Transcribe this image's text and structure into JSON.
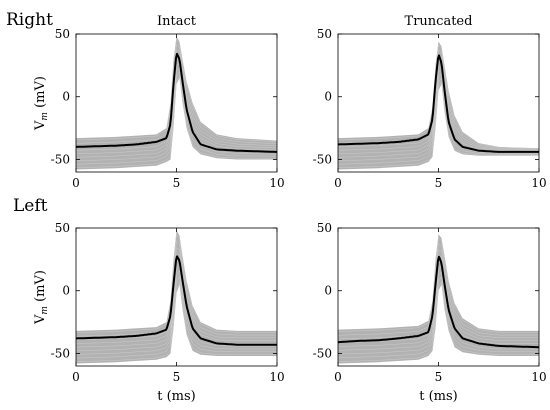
{
  "figure": {
    "row_labels": [
      "Right",
      "Left"
    ],
    "col_titles": [
      "Intact",
      "Truncated"
    ]
  },
  "chart_data": [
    {
      "type": "line",
      "title": "Intact",
      "row": "Right",
      "ylabel": "V",
      "ylabel_sub": "m",
      "ylabel_unit": " (mV)",
      "xlabel": "",
      "xlim": [
        0,
        10
      ],
      "ylim": [
        -60,
        50
      ],
      "xticks": [
        "0",
        "5",
        "10"
      ],
      "yticks": [
        "50",
        "0",
        "-50"
      ],
      "band_color": "#b2b2b2",
      "mean_color": "#000000",
      "grid": false,
      "mean_trace": {
        "x": [
          0,
          1,
          2,
          3,
          4,
          4.5,
          4.7,
          4.85,
          5.0,
          5.15,
          5.3,
          5.5,
          5.8,
          6.2,
          7,
          8,
          10
        ],
        "y": [
          -40,
          -39.5,
          -39,
          -38,
          -36,
          -33,
          -22,
          10,
          35,
          30,
          12,
          -10,
          -28,
          -38,
          -42,
          -43,
          -44
        ]
      },
      "envelope": {
        "x": [
          0,
          2,
          4,
          4.5,
          4.7,
          4.85,
          5.0,
          5.15,
          5.3,
          5.5,
          5.8,
          6.2,
          7,
          8,
          10
        ],
        "upper": [
          -33,
          -32,
          -30,
          -25,
          -5,
          30,
          48,
          44,
          30,
          12,
          -5,
          -20,
          -30,
          -33,
          -35
        ],
        "lower": [
          -58,
          -57,
          -55,
          -52,
          -50,
          -25,
          10,
          15,
          -5,
          -25,
          -40,
          -46,
          -49,
          -50,
          -50
        ]
      }
    },
    {
      "type": "line",
      "title": "Truncated",
      "row": "Right",
      "ylabel": "",
      "xlabel": "",
      "xlim": [
        0,
        10
      ],
      "ylim": [
        -60,
        50
      ],
      "xticks": [
        "0",
        "5",
        "10"
      ],
      "yticks": [
        "50",
        "0",
        "-50"
      ],
      "band_color": "#b2b2b2",
      "mean_color": "#000000",
      "grid": false,
      "mean_trace": {
        "x": [
          0,
          1,
          2,
          3,
          4,
          4.5,
          4.7,
          4.85,
          5.0,
          5.15,
          5.3,
          5.5,
          5.8,
          6.2,
          7,
          8,
          10
        ],
        "y": [
          -38,
          -37.5,
          -37,
          -36,
          -34,
          -30,
          -18,
          12,
          34,
          27,
          5,
          -20,
          -34,
          -40,
          -43,
          -44,
          -44
        ]
      },
      "envelope": {
        "x": [
          0,
          2,
          4,
          4.5,
          4.7,
          4.85,
          5.0,
          5.15,
          5.3,
          5.5,
          5.8,
          6.2,
          7,
          8,
          10
        ],
        "upper": [
          -33,
          -32,
          -30,
          -25,
          -8,
          25,
          44,
          40,
          25,
          5,
          -15,
          -28,
          -37,
          -40,
          -41
        ],
        "lower": [
          -58,
          -57,
          -55,
          -52,
          -48,
          -25,
          5,
          10,
          -12,
          -32,
          -43,
          -46,
          -47,
          -47,
          -47
        ]
      }
    },
    {
      "type": "line",
      "title": "",
      "row": "Left",
      "ylabel": "V",
      "ylabel_sub": "m",
      "ylabel_unit": " (mV)",
      "xlabel": "t (ms)",
      "xlim": [
        0,
        10
      ],
      "ylim": [
        -60,
        50
      ],
      "xticks": [
        "0",
        "5",
        "10"
      ],
      "yticks": [
        "50",
        "0",
        "-50"
      ],
      "band_color": "#b2b2b2",
      "mean_color": "#000000",
      "grid": false,
      "mean_trace": {
        "x": [
          0,
          1,
          2,
          3,
          4,
          4.5,
          4.7,
          4.85,
          5.0,
          5.15,
          5.3,
          5.5,
          5.8,
          6.2,
          7,
          8,
          10
        ],
        "y": [
          -38,
          -37.5,
          -37,
          -36,
          -34,
          -31,
          -20,
          5,
          28,
          24,
          8,
          -12,
          -30,
          -38,
          -42,
          -43,
          -43
        ]
      },
      "envelope": {
        "x": [
          0,
          2,
          4,
          4.5,
          4.7,
          4.85,
          5.0,
          5.15,
          5.3,
          5.5,
          5.8,
          6.2,
          7,
          8,
          10
        ],
        "upper": [
          -32,
          -31,
          -29,
          -25,
          -8,
          25,
          48,
          44,
          28,
          8,
          -12,
          -25,
          -31,
          -32,
          -32
        ],
        "lower": [
          -58,
          -57,
          -55,
          -53,
          -50,
          -30,
          -2,
          5,
          -15,
          -35,
          -48,
          -51,
          -52,
          -52,
          -52
        ]
      }
    },
    {
      "type": "line",
      "title": "",
      "row": "Left",
      "ylabel": "",
      "xlabel": "t (ms)",
      "xlim": [
        0,
        10
      ],
      "ylim": [
        -60,
        50
      ],
      "xticks": [
        "0",
        "5",
        "10"
      ],
      "yticks": [
        "50",
        "0",
        "-50"
      ],
      "band_color": "#b2b2b2",
      "mean_color": "#000000",
      "grid": false,
      "mean_trace": {
        "x": [
          0,
          1,
          2,
          3,
          4,
          4.5,
          4.7,
          4.85,
          5.0,
          5.15,
          5.3,
          5.5,
          5.8,
          6.2,
          7,
          8,
          10
        ],
        "y": [
          -41,
          -40,
          -39.5,
          -38,
          -36,
          -33,
          -20,
          5,
          28,
          22,
          5,
          -15,
          -30,
          -38,
          -42,
          -44,
          -45
        ]
      },
      "envelope": {
        "x": [
          0,
          2,
          4,
          4.5,
          4.7,
          4.85,
          5.0,
          5.15,
          5.3,
          5.5,
          5.8,
          6.2,
          7,
          8,
          10
        ],
        "upper": [
          -31,
          -30,
          -28,
          -24,
          -8,
          25,
          45,
          42,
          28,
          8,
          -10,
          -22,
          -30,
          -32,
          -32
        ],
        "lower": [
          -58,
          -57,
          -55,
          -52,
          -48,
          -30,
          0,
          5,
          -15,
          -32,
          -45,
          -49,
          -51,
          -52,
          -52
        ]
      }
    }
  ]
}
